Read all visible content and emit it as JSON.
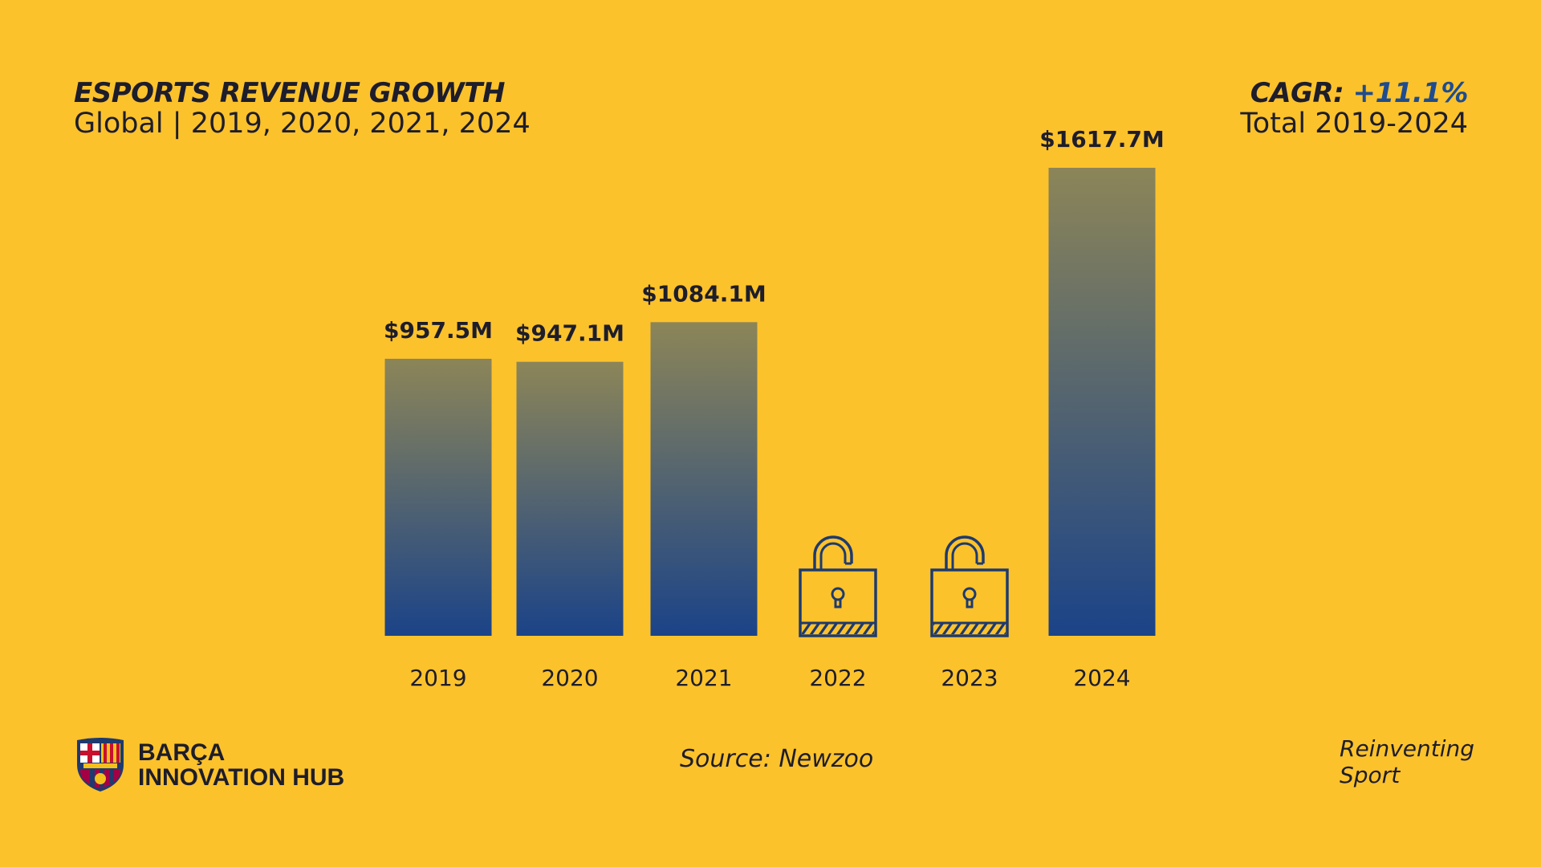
{
  "header": {
    "title": "ESPORTS REVENUE GROWTH",
    "subtitle": "Global | 2019, 2020, 2021, 2024",
    "cagr_label": "CAGR:",
    "cagr_value": "+11.1%",
    "cagr_sub": "Total 2019-2024"
  },
  "footer": {
    "logo_line1": "BARÇA",
    "logo_line2": "INNOVATION HUB",
    "source": "Source: Newzoo",
    "tagline_line1": "Reinventing",
    "tagline_line2": "Sport"
  },
  "colors": {
    "background": "#FCC22C",
    "bar_top": "#8C8558",
    "bar_bottom": "#1B4388",
    "lock": "#1e3a6e",
    "text": "#1d1d2b",
    "accent": "#1e4c8f"
  },
  "chart_data": {
    "type": "bar",
    "categories": [
      "2019",
      "2020",
      "2021",
      "2022",
      "2023",
      "2024"
    ],
    "values": [
      957.5,
      947.1,
      1084.1,
      null,
      null,
      1617.7
    ],
    "data_labels": [
      "$957.5M",
      "$947.1M",
      "$1084.1M",
      "",
      "",
      "$1617.7M"
    ],
    "locked": [
      false,
      false,
      false,
      true,
      true,
      false
    ],
    "locked_icon": "unlocked-padlock-icon",
    "unit": "M USD",
    "title": "ESPORTS REVENUE GROWTH",
    "xlabel": "",
    "ylabel": "",
    "ylim": [
      0,
      1617.7
    ],
    "grid": false,
    "legend": "none"
  }
}
